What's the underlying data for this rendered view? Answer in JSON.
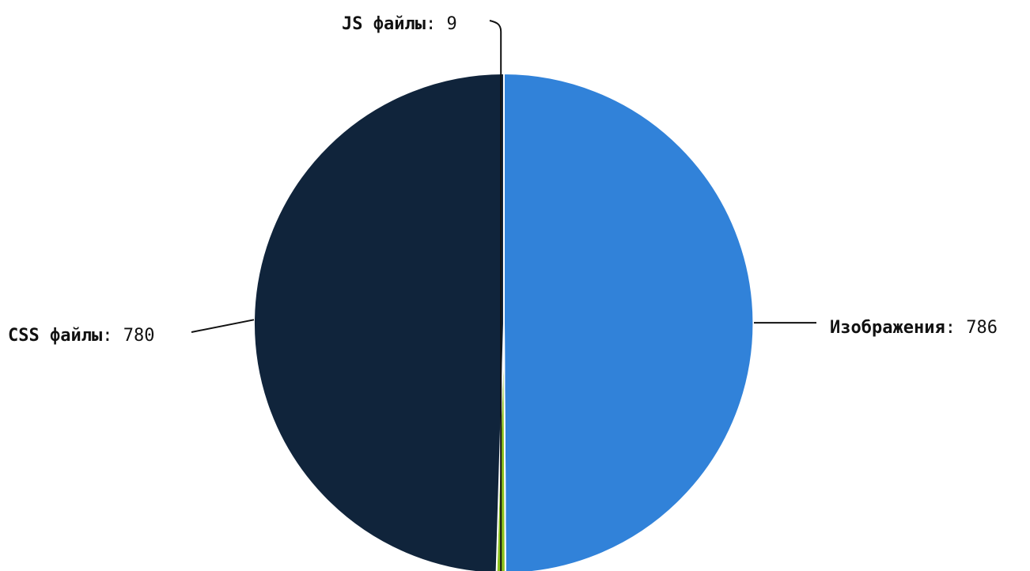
{
  "chart_data": {
    "type": "pie",
    "series": [
      {
        "slices": [
          {
            "label": "Изображения",
            "value": 786,
            "color": "#3182d9"
          },
          {
            "label": "JS файлы",
            "value": 9,
            "color": "#8dc21f"
          },
          {
            "label": "CSS файлы",
            "value": 780,
            "color": "#10243b"
          }
        ]
      }
    ],
    "label_separator": ": ",
    "legend": "none",
    "label_style": "outside-with-leader-lines",
    "start_angle": "12 o'clock",
    "direction": "clockwise"
  }
}
